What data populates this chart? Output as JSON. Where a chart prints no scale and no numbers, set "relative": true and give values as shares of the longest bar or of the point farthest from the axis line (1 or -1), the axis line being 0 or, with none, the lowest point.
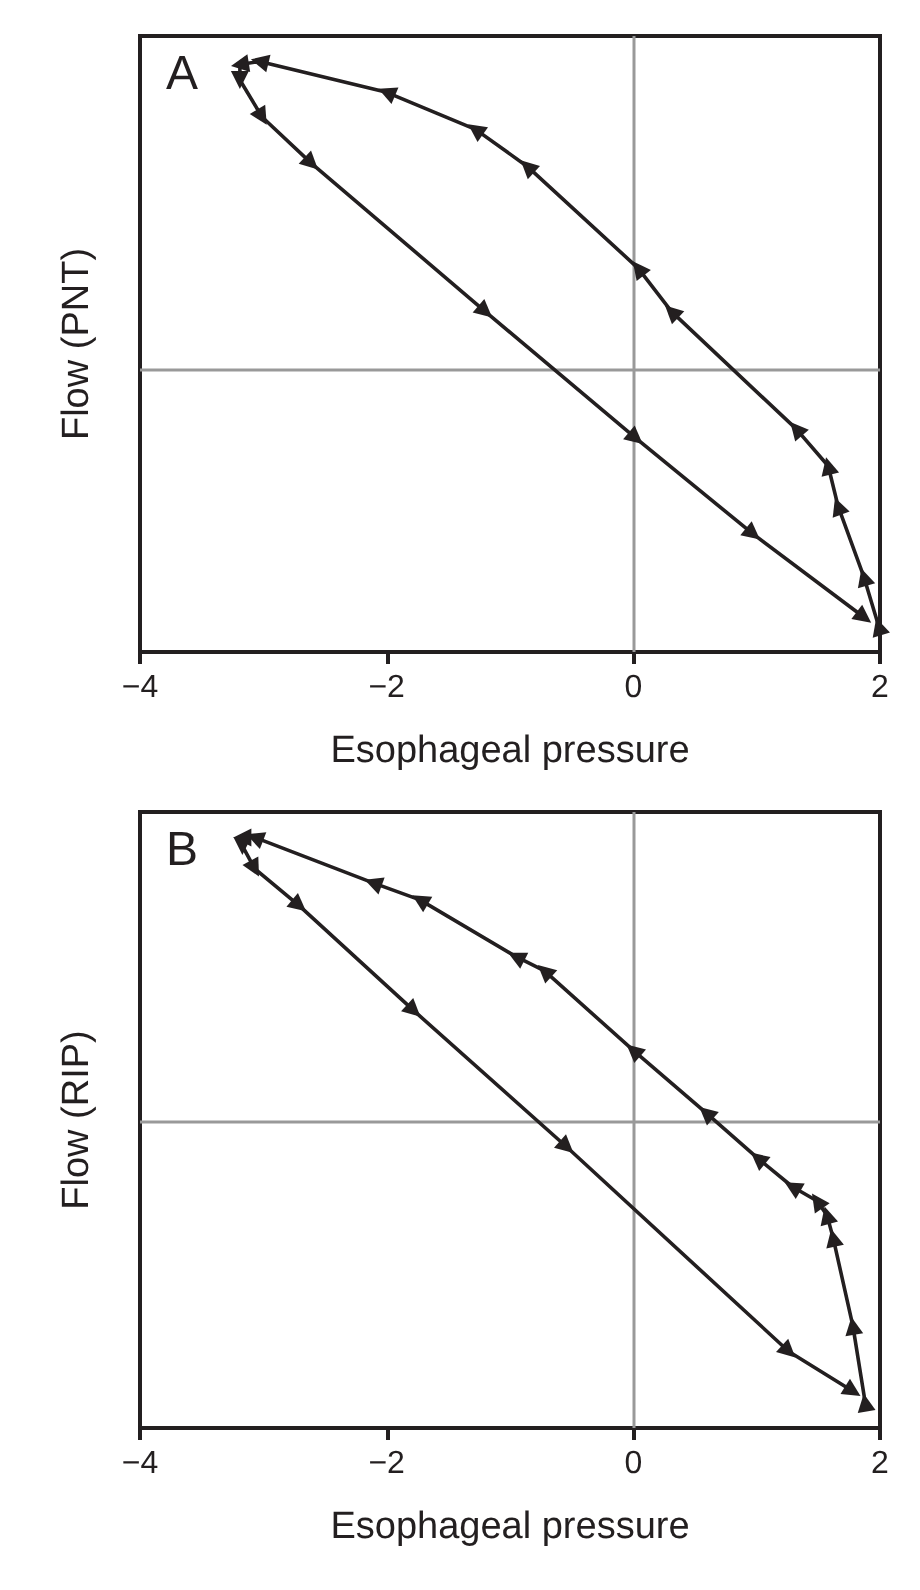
{
  "chart_data": [
    {
      "type": "line",
      "title": "A",
      "xlabel": "Esophageal pressure",
      "ylabel": "Flow (PNT)",
      "relative": true,
      "xlim": [
        -4,
        2
      ],
      "xticks": [
        -4,
        -2,
        0,
        2
      ],
      "tick_labels": "x",
      "grid": false,
      "marker": "triangle",
      "line_style": "solid",
      "ref_lines": [
        {
          "axis": "x",
          "value": 0,
          "color": "#999999"
        }
      ],
      "series": [
        {
          "color": "#231f20",
          "x": [
            1.99,
            1.87,
            1.66,
            1.58,
            1.32,
            0.31,
            0.04,
            -0.86,
            -1.28,
            -2.0,
            -3.03,
            -3.19,
            -3.19,
            -3.01,
            -2.61,
            -1.2,
            0.02,
            0.97,
            1.87
          ],
          "values": [
            -0.83,
            -0.67,
            -0.44,
            -0.31,
            -0.19,
            0.19,
            0.33,
            0.66,
            0.78,
            0.9,
            1,
            0.99,
            0.94,
            0.82,
            0.67,
            0.19,
            -0.22,
            -0.53,
            -0.8
          ]
        }
      ]
    },
    {
      "type": "line",
      "title": "B",
      "xlabel": "Esophageal pressure",
      "ylabel": "Flow (RIP)",
      "relative": true,
      "xlim": [
        -4,
        2
      ],
      "xticks": [
        -4,
        -2,
        0,
        2
      ],
      "tick_labels": "x",
      "grid": false,
      "marker": "triangle",
      "line_style": "solid",
      "ref_lines": [
        {
          "axis": "x",
          "value": 0,
          "color": "#999999"
        }
      ],
      "series": [
        {
          "color": "#231f20",
          "x": [
            1.88,
            1.78,
            1.62,
            1.57,
            1.49,
            1.29,
            1.01,
            0.59,
            0,
            -0.72,
            -0.95,
            -1.73,
            -2.11,
            -3.07,
            -3.17,
            -3.17,
            -3.07,
            -2.71,
            -1.78,
            -0.54,
            1.26,
            1.78
          ],
          "values": [
            -0.99,
            -0.72,
            -0.41,
            -0.33,
            -0.28,
            -0.23,
            -0.13,
            0.03,
            0.25,
            0.53,
            0.58,
            0.78,
            0.84,
            1.0,
            1.0,
            0.97,
            0.89,
            0.76,
            0.39,
            -0.09,
            -0.81,
            -0.95
          ]
        }
      ]
    }
  ]
}
